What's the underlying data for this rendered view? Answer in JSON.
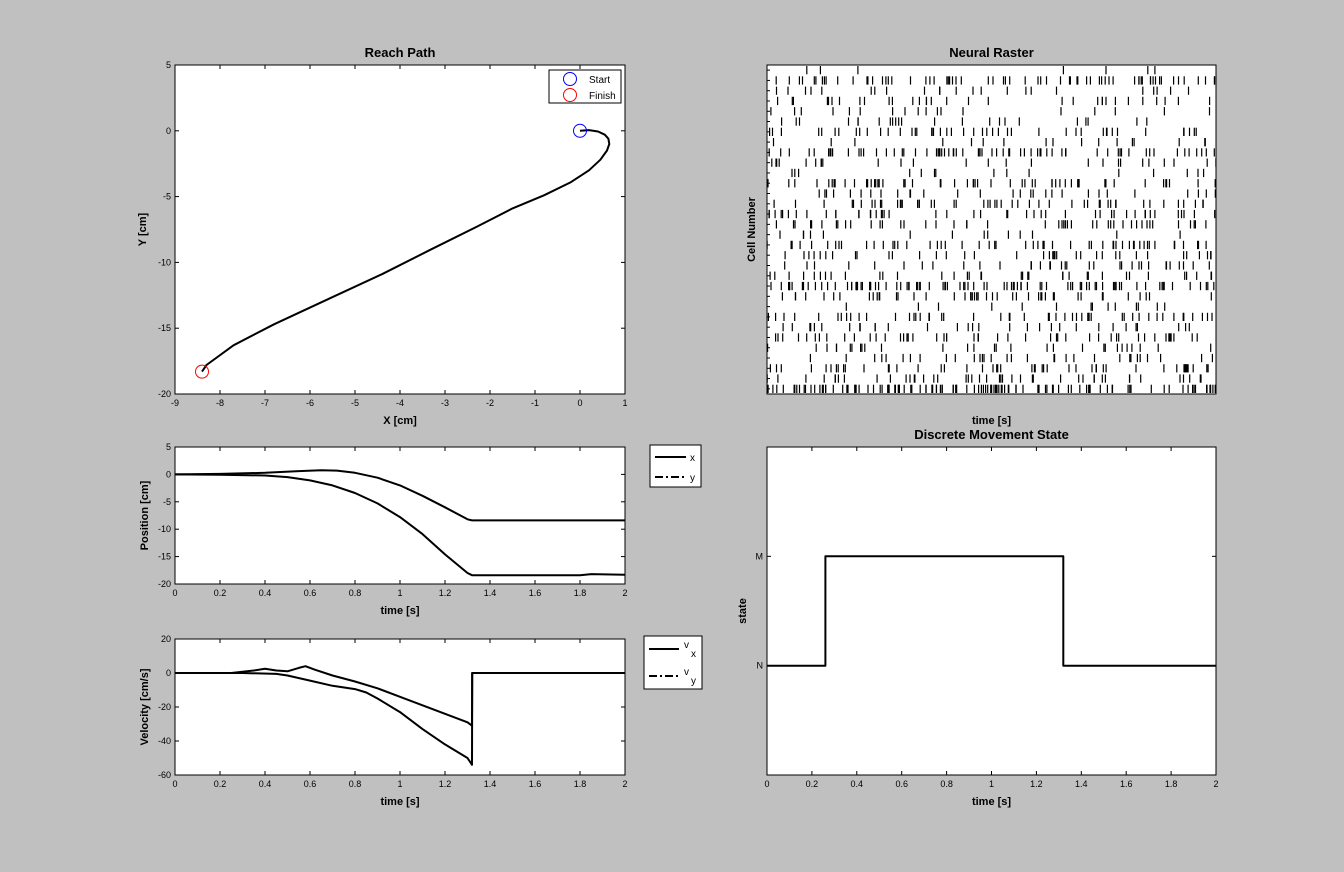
{
  "chart_data": [
    {
      "id": "reach",
      "type": "line",
      "title": "Reach Path",
      "xlabel": "X [cm]",
      "ylabel": "Y [cm]",
      "xlim": [
        -9,
        1
      ],
      "ylim": [
        -20,
        5
      ],
      "xticks": [
        -9,
        -8,
        -7,
        -6,
        -5,
        -4,
        -3,
        -2,
        -1,
        0,
        1
      ],
      "yticks": [
        -20,
        -15,
        -10,
        -5,
        0,
        5
      ],
      "grid": false,
      "legend": {
        "position": "top-right",
        "entries": [
          {
            "label": "Start",
            "color": "#0000ff",
            "marker": "circle"
          },
          {
            "label": "Finish",
            "color": "#ff0000",
            "marker": "circle"
          }
        ]
      },
      "series": [
        {
          "style": "solid",
          "color": "#000000",
          "x": [
            0,
            0.2,
            0.4,
            0.55,
            0.63,
            0.65,
            0.6,
            0.45,
            0.2,
            -0.2,
            -0.8,
            -1.5,
            -2.3,
            -3.3,
            -4.4,
            -5.6,
            -6.8,
            -7.7,
            -8.3,
            -8.4
          ],
          "y": [
            0,
            0.05,
            -0.05,
            -0.3,
            -0.6,
            -1.0,
            -1.5,
            -2.2,
            -3.0,
            -3.9,
            -4.9,
            -5.9,
            -7.3,
            -9.0,
            -10.9,
            -12.8,
            -14.7,
            -16.3,
            -17.8,
            -18.3
          ]
        }
      ],
      "markers": [
        {
          "label": "Start",
          "x": 0,
          "y": 0,
          "color": "#0000ff"
        },
        {
          "label": "Finish",
          "x": -8.4,
          "y": -18.3,
          "color": "#ff0000"
        }
      ]
    },
    {
      "id": "raster",
      "type": "scatter",
      "title": "Neural Raster",
      "xlabel": "time [s]",
      "ylabel": "Cell Number",
      "rows": 32,
      "xlim": [
        0,
        2
      ],
      "note_raster": "spikes per row as times in seconds",
      "rates": [
        6,
        30,
        14,
        18,
        8,
        10,
        22,
        12,
        34,
        16,
        10,
        20,
        14,
        26,
        18,
        24,
        12,
        30,
        18,
        16,
        14,
        40,
        20,
        10,
        26,
        14,
        22,
        12,
        18,
        24,
        20,
        60
      ]
    },
    {
      "id": "position",
      "type": "line",
      "title": "",
      "xlabel": "time [s]",
      "ylabel": "Position [cm]",
      "xlim": [
        0,
        2
      ],
      "ylim": [
        -20,
        5
      ],
      "xticks": [
        0,
        0.2,
        0.4,
        0.6,
        0.8,
        1,
        1.2,
        1.4,
        1.6,
        1.8,
        2
      ],
      "yticks": [
        -20,
        -15,
        -10,
        -5,
        0,
        5
      ],
      "legend": {
        "position": "outside-right",
        "entries": [
          {
            "label": "x",
            "style": "solid"
          },
          {
            "label": "y",
            "style": "dashdot"
          }
        ]
      },
      "series": [
        {
          "name": "x",
          "style": "solid",
          "x": [
            0,
            0.2,
            0.4,
            0.55,
            0.65,
            0.72,
            0.8,
            0.9,
            1.0,
            1.1,
            1.2,
            1.3,
            1.32,
            2.0
          ],
          "y": [
            0,
            0.1,
            0.3,
            0.6,
            0.75,
            0.7,
            0.3,
            -0.6,
            -2.0,
            -3.9,
            -6.0,
            -8.2,
            -8.4,
            -8.4
          ]
        },
        {
          "name": "y",
          "style": "dashdot",
          "x": [
            0,
            0.2,
            0.4,
            0.5,
            0.6,
            0.7,
            0.8,
            0.9,
            1.0,
            1.1,
            1.2,
            1.3,
            1.32,
            1.8,
            1.85,
            2.0
          ],
          "y": [
            0,
            -0.05,
            -0.2,
            -0.5,
            -1.1,
            -2.0,
            -3.4,
            -5.3,
            -7.8,
            -10.9,
            -14.6,
            -18.0,
            -18.4,
            -18.4,
            -18.2,
            -18.3
          ]
        }
      ]
    },
    {
      "id": "velocity",
      "type": "line",
      "title": "",
      "xlabel": "time [s]",
      "ylabel": "Velocity [cm/s]",
      "xlim": [
        0,
        2
      ],
      "ylim": [
        -60,
        20
      ],
      "xticks": [
        0,
        0.2,
        0.4,
        0.6,
        0.8,
        1,
        1.2,
        1.4,
        1.6,
        1.8,
        2
      ],
      "yticks": [
        -60,
        -40,
        -20,
        0,
        20
      ],
      "legend": {
        "position": "outside-right",
        "entries": [
          {
            "label": "v",
            "sub": "x",
            "style": "solid"
          },
          {
            "label": "v",
            "sub": "y",
            "style": "dashdot"
          }
        ]
      },
      "series": [
        {
          "name": "vx",
          "style": "solid",
          "x": [
            0,
            0.25,
            0.35,
            0.4,
            0.45,
            0.5,
            0.55,
            0.58,
            0.62,
            0.7,
            0.8,
            0.9,
            1.0,
            1.1,
            1.2,
            1.3,
            1.32,
            1.321,
            2.0
          ],
          "y": [
            0,
            0,
            1.5,
            2.5,
            1.5,
            1.0,
            3.0,
            4.0,
            2.0,
            -1.5,
            -5.0,
            -9.0,
            -14.0,
            -19.0,
            -24.0,
            -29.0,
            -31.0,
            0,
            0
          ]
        },
        {
          "name": "vy",
          "style": "dashdot",
          "x": [
            0,
            0.3,
            0.45,
            0.5,
            0.6,
            0.7,
            0.8,
            0.85,
            0.9,
            1.0,
            1.1,
            1.2,
            1.3,
            1.32,
            1.321,
            2.0
          ],
          "y": [
            0,
            0,
            -0.5,
            -1.5,
            -4.5,
            -7.5,
            -9.5,
            -11.5,
            -15.0,
            -23.0,
            -33.0,
            -42.0,
            -50.0,
            -54.0,
            0,
            0
          ]
        }
      ]
    },
    {
      "id": "state",
      "type": "line",
      "title": "Discrete Movement State",
      "xlabel": "time [s]",
      "ylabel": "state",
      "xlim": [
        0,
        2
      ],
      "ylim": [
        0,
        3
      ],
      "xticks": [
        0,
        0.2,
        0.4,
        0.6,
        0.8,
        1,
        1.2,
        1.4,
        1.6,
        1.8,
        2
      ],
      "ytick_values": [
        1,
        2
      ],
      "ytick_labels": [
        "N",
        "M"
      ],
      "series": [
        {
          "style": "solid",
          "x": [
            0,
            0.26,
            0.26,
            1.32,
            1.32,
            2.0
          ],
          "y": [
            1,
            1,
            2,
            2,
            1,
            1
          ]
        }
      ]
    }
  ]
}
